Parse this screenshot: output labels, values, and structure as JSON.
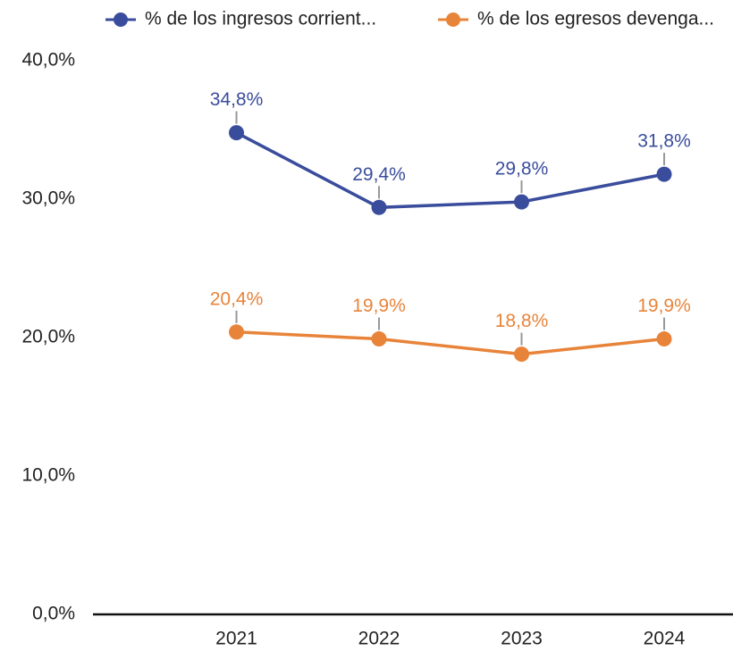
{
  "chart_data": {
    "type": "line",
    "categories": [
      "2021",
      "2022",
      "2023",
      "2024"
    ],
    "series": [
      {
        "name": "% de los ingresos corrient...",
        "color": "#3a4d9c",
        "values": [
          34.8,
          29.4,
          29.8,
          31.8
        ],
        "value_labels": [
          "34,8%",
          "29,4%",
          "29,8%",
          "31,8%"
        ]
      },
      {
        "name": "% de los egresos devenga...",
        "color": "#e8843a",
        "values": [
          20.4,
          19.9,
          18.8,
          19.9
        ],
        "value_labels": [
          "20,4%",
          "19,9%",
          "18,8%",
          "19,9%"
        ]
      }
    ],
    "ylim": [
      0,
      40
    ],
    "yticks": [
      {
        "value": 0,
        "label": "0,0%"
      },
      {
        "value": 10,
        "label": "10,0%"
      },
      {
        "value": 20,
        "label": "20,0%"
      },
      {
        "value": 30,
        "label": "30,0%"
      },
      {
        "value": 40,
        "label": "40,0%"
      }
    ],
    "legend": "top"
  }
}
